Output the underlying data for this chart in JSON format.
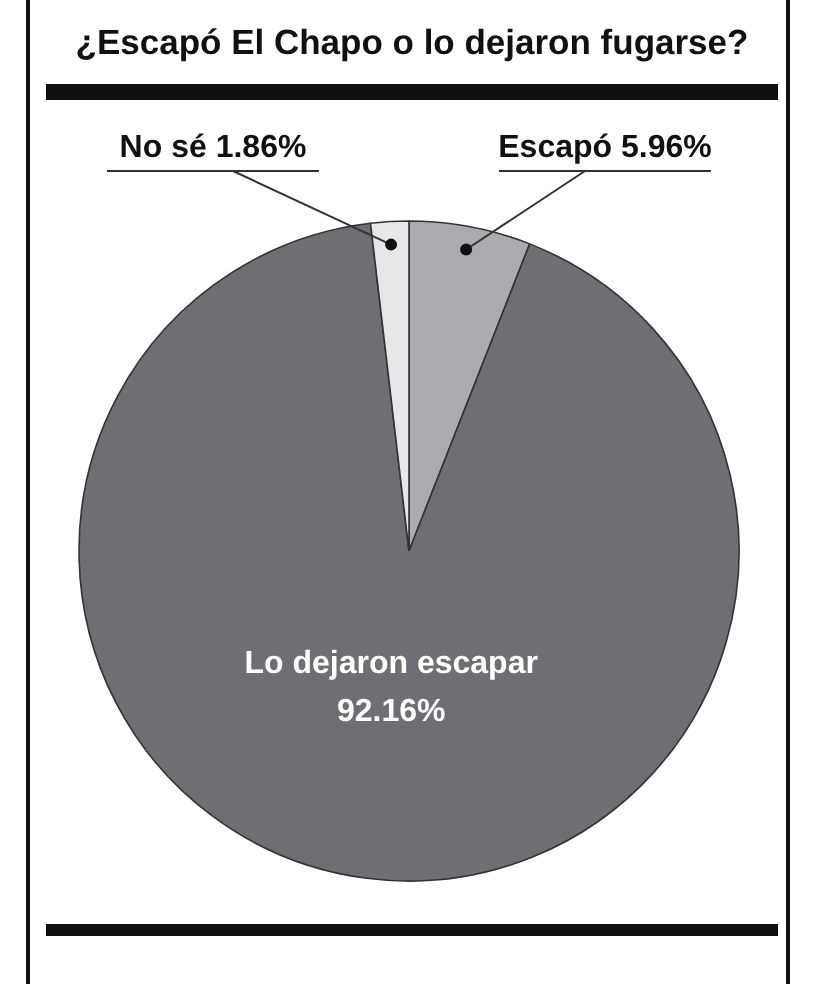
{
  "chart_data": {
    "type": "pie",
    "title": "¿Escapó El Chapo o lo dejaron fugarse?",
    "categories": [
      "Escapó",
      "Lo dejaron escapar",
      "No sé"
    ],
    "values": [
      5.96,
      92.16,
      1.86
    ],
    "value_labels": [
      "5.96%",
      "92.16%",
      "1.86%"
    ],
    "colors": [
      "#a9abae",
      "#6e6f72",
      "#e6e7e8"
    ]
  }
}
